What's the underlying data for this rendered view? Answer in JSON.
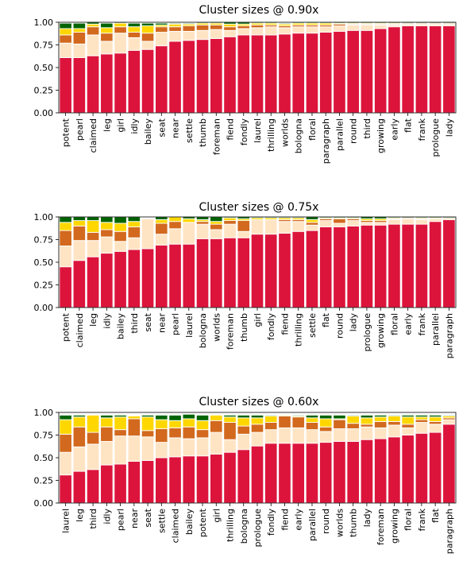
{
  "figure": {
    "subplots": [
      {
        "title": "Cluster sizes @ 0.90x",
        "chart_data": {
          "type": "bar",
          "stacked": true,
          "ylim": [
            0,
            1.0
          ],
          "yticks": [
            "0.00",
            "0.25",
            "0.50",
            "0.75",
            "1.00"
          ],
          "categories": [
            "potent",
            "pearl",
            "claimed",
            "leg",
            "girl",
            "idly",
            "bailey",
            "seat",
            "near",
            "settle",
            "thumb",
            "foreman",
            "fiend",
            "fondly",
            "laurel",
            "thrilling",
            "worlds",
            "bologna",
            "floral",
            "paragraph",
            "parallel",
            "round",
            "third",
            "growing",
            "early",
            "flat",
            "frank",
            "prologue",
            "lady"
          ],
          "series": [
            {
              "color": "#dc143c",
              "values": [
                0.61,
                0.61,
                0.63,
                0.65,
                0.66,
                0.69,
                0.7,
                0.74,
                0.79,
                0.8,
                0.81,
                0.82,
                0.84,
                0.86,
                0.86,
                0.86,
                0.87,
                0.88,
                0.88,
                0.89,
                0.9,
                0.91,
                0.91,
                0.93,
                0.95,
                0.96,
                0.96,
                0.96,
                0.96
              ]
            },
            {
              "color": "#ffe4c4",
              "values": [
                0.16,
                0.15,
                0.23,
                0.14,
                0.22,
                0.14,
                0.09,
                0.15,
                0.11,
                0.1,
                0.1,
                0.1,
                0.07,
                0.07,
                0.08,
                0.09,
                0.07,
                0.07,
                0.07,
                0.06,
                0.06,
                0.06,
                0.06,
                0.04,
                0.02,
                0.02,
                0.02,
                0.02,
                0.02
              ]
            },
            {
              "color": "#d2691e",
              "values": [
                0.09,
                0.13,
                0.09,
                0.09,
                0.07,
                0.06,
                0.09,
                0.06,
                0.05,
                0.06,
                0.06,
                0.05,
                0.04,
                0.03,
                0.03,
                0.02,
                0.02,
                0.02,
                0.02,
                0.02,
                0.02,
                0.01,
                0.01,
                0.01,
                0.01,
                0.01,
                0.01,
                0.01,
                0.01
              ]
            },
            {
              "color": "#ffd700",
              "values": [
                0.07,
                0.04,
                0.03,
                0.06,
                0.04,
                0.06,
                0.08,
                0.02,
                0.03,
                0.02,
                0.02,
                0.02,
                0.03,
                0.02,
                0.02,
                0.02,
                0.02,
                0.02,
                0.02,
                0.02,
                0.01,
                0.01,
                0.01,
                0.01,
                0.01,
                0.0,
                0.0,
                0.0,
                0.0
              ]
            },
            {
              "color": "#006400",
              "values": [
                0.06,
                0.06,
                0.02,
                0.05,
                0.01,
                0.04,
                0.03,
                0.02,
                0.01,
                0.01,
                0.01,
                0.01,
                0.02,
                0.02,
                0.01,
                0.01,
                0.01,
                0.01,
                0.01,
                0.01,
                0.01,
                0.01,
                0.01,
                0.01,
                0.01,
                0.01,
                0.01,
                0.01,
                0.01
              ]
            }
          ]
        }
      },
      {
        "title": "Cluster sizes @ 0.75x",
        "chart_data": {
          "type": "bar",
          "stacked": true,
          "ylim": [
            0,
            1.0
          ],
          "yticks": [
            "0.00",
            "0.25",
            "0.50",
            "0.75",
            "1.00"
          ],
          "categories": [
            "potent",
            "claimed",
            "leg",
            "idly",
            "bailey",
            "third",
            "seat",
            "near",
            "pearl",
            "laurel",
            "bologna",
            "worlds",
            "foreman",
            "thumb",
            "girl",
            "fondly",
            "fiend",
            "thrilling",
            "settle",
            "flat",
            "round",
            "lady",
            "prologue",
            "growing",
            "floral",
            "early",
            "frank",
            "parallel",
            "paragraph"
          ],
          "series": [
            {
              "color": "#dc143c",
              "values": [
                0.45,
                0.52,
                0.56,
                0.6,
                0.62,
                0.64,
                0.65,
                0.69,
                0.7,
                0.7,
                0.76,
                0.76,
                0.77,
                0.77,
                0.81,
                0.81,
                0.82,
                0.84,
                0.85,
                0.89,
                0.89,
                0.9,
                0.91,
                0.91,
                0.92,
                0.92,
                0.92,
                0.95,
                0.97
              ]
            },
            {
              "color": "#ffe4c4",
              "values": [
                0.23,
                0.22,
                0.18,
                0.18,
                0.11,
                0.13,
                0.33,
                0.12,
                0.17,
                0.24,
                0.16,
                0.1,
                0.15,
                0.07,
                0.16,
                0.16,
                0.13,
                0.11,
                0.06,
                0.07,
                0.04,
                0.06,
                0.03,
                0.03,
                0.05,
                0.06,
                0.05,
                0.03,
                0.02
              ]
            },
            {
              "color": "#d2691e",
              "values": [
                0.17,
                0.16,
                0.09,
                0.08,
                0.11,
                0.12,
                0.0,
                0.12,
                0.08,
                0.0,
                0.03,
                0.06,
                0.04,
                0.12,
                0.0,
                0.0,
                0.02,
                0.02,
                0.03,
                0.02,
                0.05,
                0.02,
                0.02,
                0.02,
                0.01,
                0.01,
                0.01,
                0.0,
                0.0
              ]
            },
            {
              "color": "#ffd700",
              "values": [
                0.09,
                0.06,
                0.13,
                0.08,
                0.09,
                0.06,
                0.0,
                0.04,
                0.05,
                0.04,
                0.02,
                0.03,
                0.03,
                0.02,
                0.02,
                0.02,
                0.02,
                0.02,
                0.03,
                0.01,
                0.01,
                0.01,
                0.02,
                0.02,
                0.01,
                0.0,
                0.01,
                0.01,
                0.0
              ]
            },
            {
              "color": "#006400",
              "values": [
                0.06,
                0.04,
                0.04,
                0.06,
                0.07,
                0.05,
                0.0,
                0.03,
                0.0,
                0.02,
                0.03,
                0.05,
                0.01,
                0.02,
                0.01,
                0.01,
                0.01,
                0.01,
                0.03,
                0.01,
                0.01,
                0.01,
                0.02,
                0.02,
                0.01,
                0.01,
                0.01,
                0.01,
                0.01
              ]
            }
          ]
        }
      },
      {
        "title": "Cluster sizes @ 0.60x",
        "chart_data": {
          "type": "bar",
          "stacked": true,
          "ylim": [
            0,
            1.0
          ],
          "yticks": [
            "0.00",
            "0.25",
            "0.50",
            "0.75",
            "1.00"
          ],
          "categories": [
            "laurel",
            "leg",
            "third",
            "idly",
            "pearl",
            "near",
            "seat",
            "settle",
            "claimed",
            "bailey",
            "potent",
            "girl",
            "thrilling",
            "bologna",
            "prologue",
            "fondly",
            "fiend",
            "early",
            "parallel",
            "round",
            "worlds",
            "thumb",
            "lady",
            "foreman",
            "growing",
            "floral",
            "frank",
            "flat",
            "paragraph"
          ],
          "series": [
            {
              "color": "#dc143c",
              "values": [
                0.31,
                0.35,
                0.37,
                0.42,
                0.43,
                0.46,
                0.47,
                0.5,
                0.51,
                0.52,
                0.52,
                0.54,
                0.56,
                0.59,
                0.63,
                0.66,
                0.66,
                0.66,
                0.66,
                0.67,
                0.68,
                0.68,
                0.7,
                0.71,
                0.73,
                0.75,
                0.77,
                0.78,
                0.87
              ]
            },
            {
              "color": "#ffe4c4",
              "values": [
                0.25,
                0.27,
                0.28,
                0.26,
                0.31,
                0.28,
                0.26,
                0.17,
                0.21,
                0.19,
                0.2,
                0.24,
                0.14,
                0.17,
                0.15,
                0.15,
                0.17,
                0.17,
                0.15,
                0.12,
                0.14,
                0.14,
                0.14,
                0.12,
                0.13,
                0.08,
                0.12,
                0.09,
                0.05
              ]
            },
            {
              "color": "#d2691e",
              "values": [
                0.2,
                0.22,
                0.13,
                0.16,
                0.07,
                0.19,
                0.07,
                0.15,
                0.11,
                0.13,
                0.09,
                0.13,
                0.19,
                0.09,
                0.09,
                0.08,
                0.13,
                0.12,
                0.08,
                0.05,
                0.1,
                0.06,
                0.03,
                0.07,
                0.04,
                0.04,
                0.03,
                0.03,
                0.02
              ]
            },
            {
              "color": "#ffd700",
              "values": [
                0.16,
                0.11,
                0.19,
                0.1,
                0.14,
                0.03,
                0.15,
                0.1,
                0.08,
                0.09,
                0.1,
                0.06,
                0.06,
                0.09,
                0.07,
                0.07,
                0.01,
                0.01,
                0.05,
                0.09,
                0.01,
                0.08,
                0.07,
                0.05,
                0.06,
                0.08,
                0.03,
                0.05,
                0.02
              ]
            },
            {
              "color": "#006400",
              "values": [
                0.05,
                0.02,
                0.0,
                0.03,
                0.02,
                0.0,
                0.02,
                0.05,
                0.06,
                0.05,
                0.06,
                0.0,
                0.02,
                0.03,
                0.03,
                0.01,
                0.0,
                0.01,
                0.03,
                0.04,
                0.04,
                0.01,
                0.03,
                0.02,
                0.01,
                0.02,
                0.02,
                0.02,
                0.01
              ]
            }
          ]
        }
      }
    ]
  }
}
